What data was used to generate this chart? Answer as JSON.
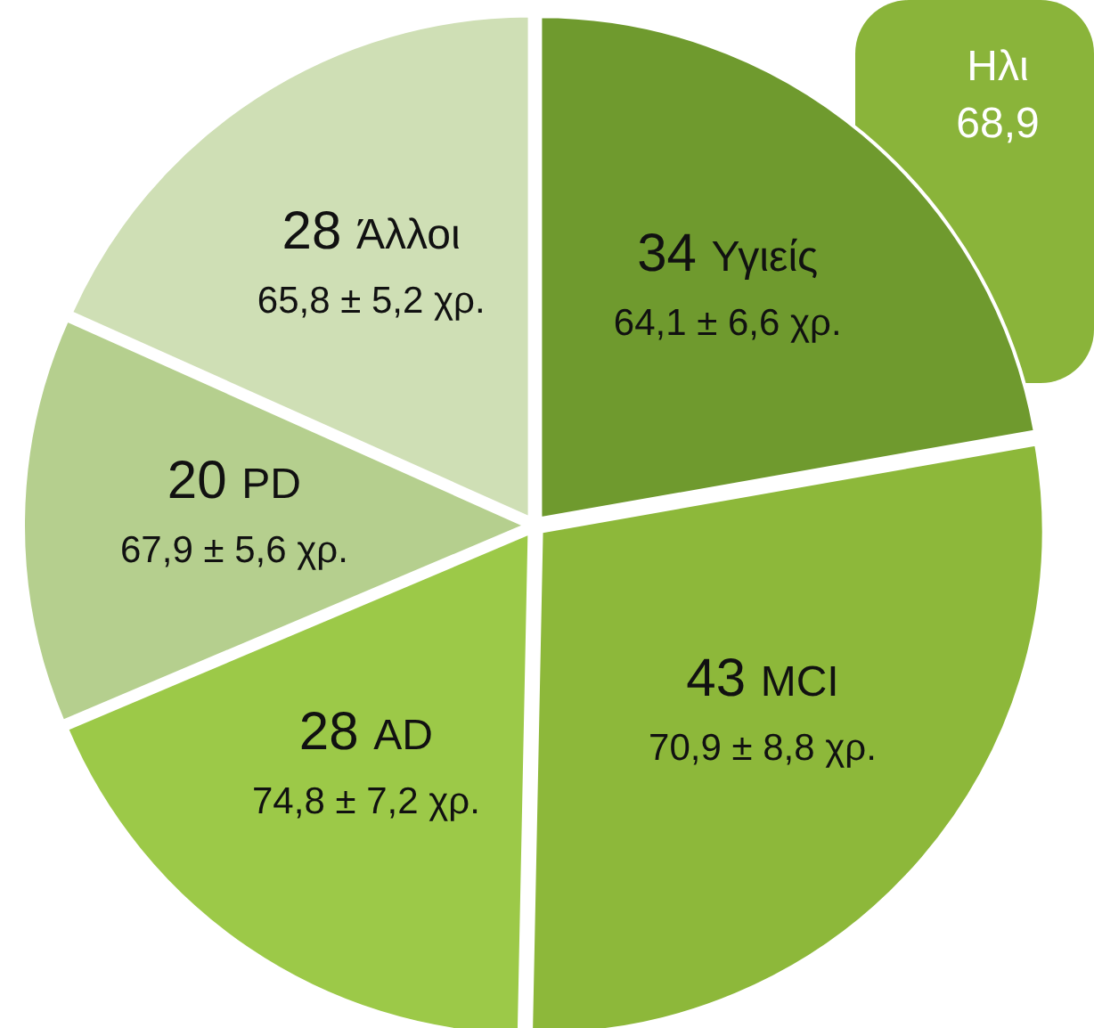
{
  "chart_data": {
    "type": "pie",
    "categories": [
      "Υγιείς",
      "MCI",
      "AD",
      "PD",
      "Άλλοι"
    ],
    "values": [
      34,
      43,
      28,
      20,
      28
    ],
    "colors": [
      "#6f9a2e",
      "#8db83a",
      "#9cc948",
      "#b5cf8e",
      "#cfdfb5"
    ],
    "data_labels": true,
    "annotations": [
      "64,1 ± 6,6 χρ.",
      "70,9 ± 8,8 χρ.",
      "74,8 ± 7,2 χρ.",
      "67,9 ± 5,6 χρ.",
      "65,8 ± 5,2 χρ.",
      "Ηλι",
      "68,9"
    ]
  }
}
